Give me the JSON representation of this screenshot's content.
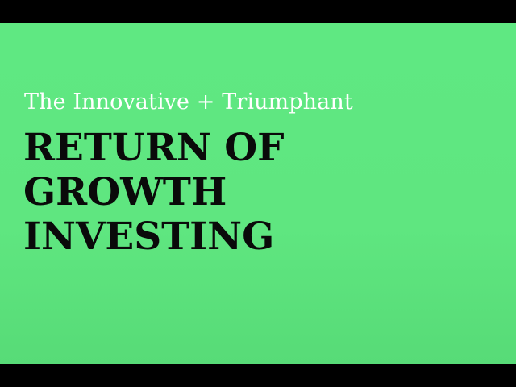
{
  "slide": {
    "subtitle": "The Innovative + Triumphant",
    "title_lines": [
      "RETURN OF",
      "GROWTH",
      "INVESTING"
    ]
  },
  "colors": {
    "background": "#5fe882",
    "letterbox": "#000000",
    "subtitle_text": "#ffffff",
    "title_text": "#0a0a0a"
  }
}
